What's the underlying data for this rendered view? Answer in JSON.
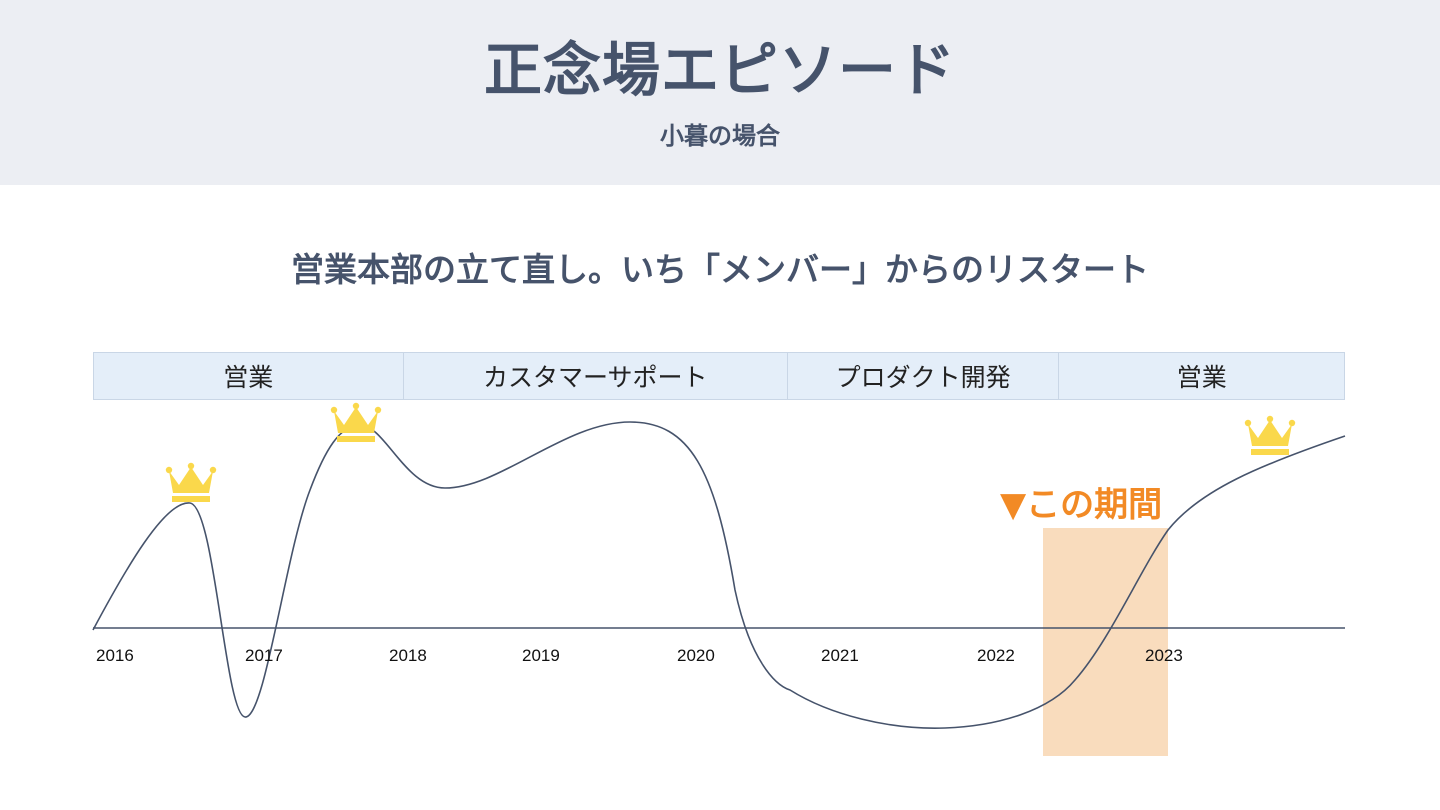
{
  "header": {
    "title": "正念場エピソード",
    "subtitle": "小暮の場合"
  },
  "headline": "営業本部の立て直し。いち「メンバー」からのリスタート",
  "phases": [
    {
      "label": "営業"
    },
    {
      "label": "カスタマーサポート"
    },
    {
      "label": "プロダクト開発"
    },
    {
      "label": "営業"
    }
  ],
  "callout": "▼この期間",
  "colors": {
    "text": "#46536b",
    "header_bg": "#eceef3",
    "phase_bg": "#e4eef9",
    "highlight": "#f9dcbd",
    "callout": "#f28a25",
    "crown": "#fad84b"
  },
  "icons": [
    "crown-icon",
    "crown-icon",
    "crown-icon"
  ],
  "chart_data": {
    "type": "line",
    "x_tick_labels": [
      "2016",
      "2017",
      "2018",
      "2019",
      "2020",
      "2021",
      "2022",
      "2023"
    ],
    "highlight_label": "▼この期間"
  }
}
